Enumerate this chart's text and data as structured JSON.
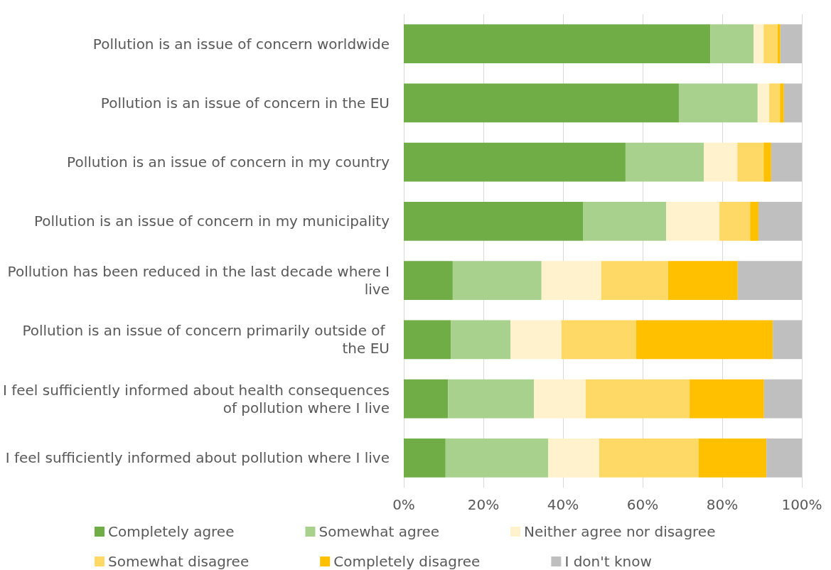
{
  "chart_data": {
    "type": "bar",
    "orientation": "horizontal",
    "stacked": true,
    "categories": [
      "Pollution is an issue of concern worldwide",
      "Pollution is an issue of concern in the EU",
      "Pollution is an issue of concern in my country",
      "Pollution is an issue of concern in my municipality",
      "Pollution has been reduced in the last decade where I live",
      "Pollution is an issue of concern primarily outside of the EU",
      "I feel sufficiently informed about health consequences of pollution where I live",
      "I feel sufficiently informed about pollution where I live"
    ],
    "series": [
      {
        "name": "Completely agree",
        "color": "#70ad47",
        "values": [
          77.0,
          69.1,
          55.7,
          45.0,
          12.3,
          11.8,
          11.1,
          10.5
        ]
      },
      {
        "name": "Somewhat agree",
        "color": "#a9d18e",
        "values": [
          10.9,
          19.8,
          19.7,
          20.9,
          22.3,
          15.0,
          21.6,
          25.8
        ]
      },
      {
        "name": "Neither agree nor disagree",
        "color": "#fff2cc",
        "values": [
          2.5,
          2.9,
          8.4,
          13.4,
          15.0,
          12.8,
          13.0,
          12.8
        ]
      },
      {
        "name": "Somewhat disagree",
        "color": "#ffd966",
        "values": [
          3.5,
          2.7,
          6.6,
          7.7,
          16.8,
          18.8,
          26.1,
          25.0
        ]
      },
      {
        "name": "Completely disagree",
        "color": "#ffc000",
        "values": [
          0.7,
          1.0,
          1.9,
          2.1,
          17.5,
          34.3,
          18.7,
          17.0
        ]
      },
      {
        "name": "I don't know",
        "color": "#bfbfbf",
        "values": [
          5.4,
          4.5,
          7.7,
          10.9,
          16.1,
          7.3,
          9.5,
          8.9
        ]
      }
    ],
    "xlim": [
      0,
      100
    ],
    "xticks": [
      {
        "value": 0,
        "label": "0%"
      },
      {
        "value": 20,
        "label": "20%"
      },
      {
        "value": 40,
        "label": "40%"
      },
      {
        "value": 60,
        "label": "60%"
      },
      {
        "value": 80,
        "label": "80%"
      },
      {
        "value": 100,
        "label": "100%"
      }
    ],
    "grid": "x",
    "legend": "bottom"
  }
}
